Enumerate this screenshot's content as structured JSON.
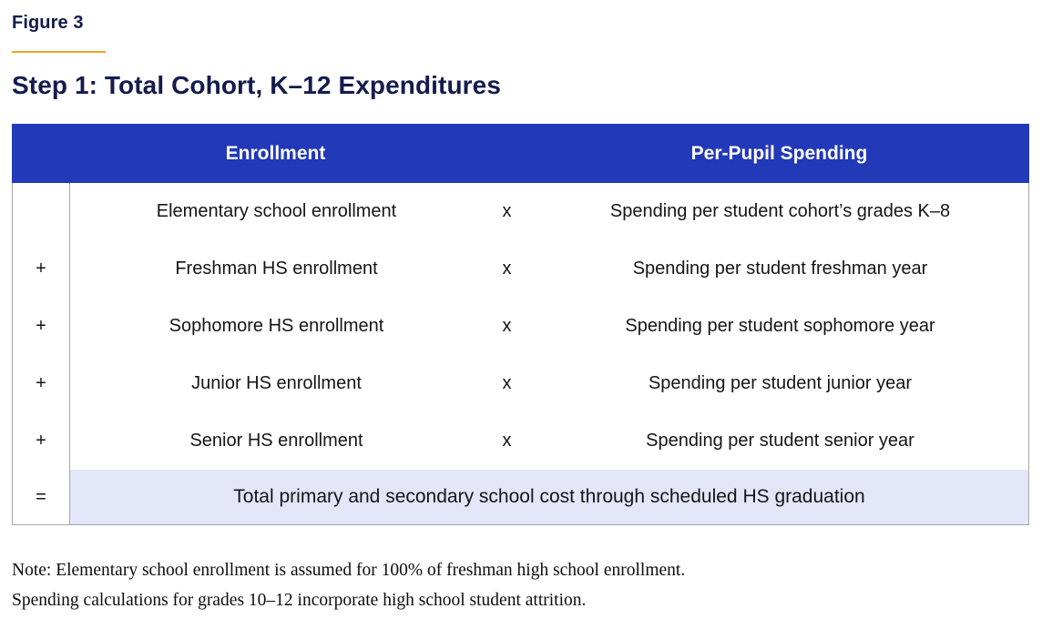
{
  "figure": {
    "label": "Figure 3",
    "title": "Step 1: Total Cohort, K–12 Expenditures"
  },
  "table": {
    "headers": {
      "enrollment": "Enrollment",
      "spending": "Per-Pupil Spending"
    },
    "rows": [
      {
        "op": "",
        "enrollment": "Elementary school enrollment",
        "times": "x",
        "spending": "Spending per student cohort’s grades K–8"
      },
      {
        "op": "+",
        "enrollment": "Freshman HS enrollment",
        "times": "x",
        "spending": "Spending per student freshman year"
      },
      {
        "op": "+",
        "enrollment": "Sophomore HS enrollment",
        "times": "x",
        "spending": "Spending per student sophomore year"
      },
      {
        "op": "+",
        "enrollment": "Junior HS enrollment",
        "times": "x",
        "spending": "Spending per student junior year"
      },
      {
        "op": "+",
        "enrollment": "Senior HS enrollment",
        "times": "x",
        "spending": "Spending per student senior year"
      }
    ],
    "total_row": {
      "op": "=",
      "label": "Total primary and secondary school cost through scheduled HS graduation"
    }
  },
  "note": {
    "line1": "Note: Elementary school enrollment is assumed for 100% of freshman high school enrollment.",
    "line2": "Spending calculations for grades 10–12 incorporate high school student attrition."
  },
  "colors": {
    "header_blue": "#2239b8",
    "total_row_bg": "#e3e6f8",
    "title_navy": "#141b4d",
    "gold_rule": "#f5a31f",
    "table_border": "#a7a7a7"
  }
}
